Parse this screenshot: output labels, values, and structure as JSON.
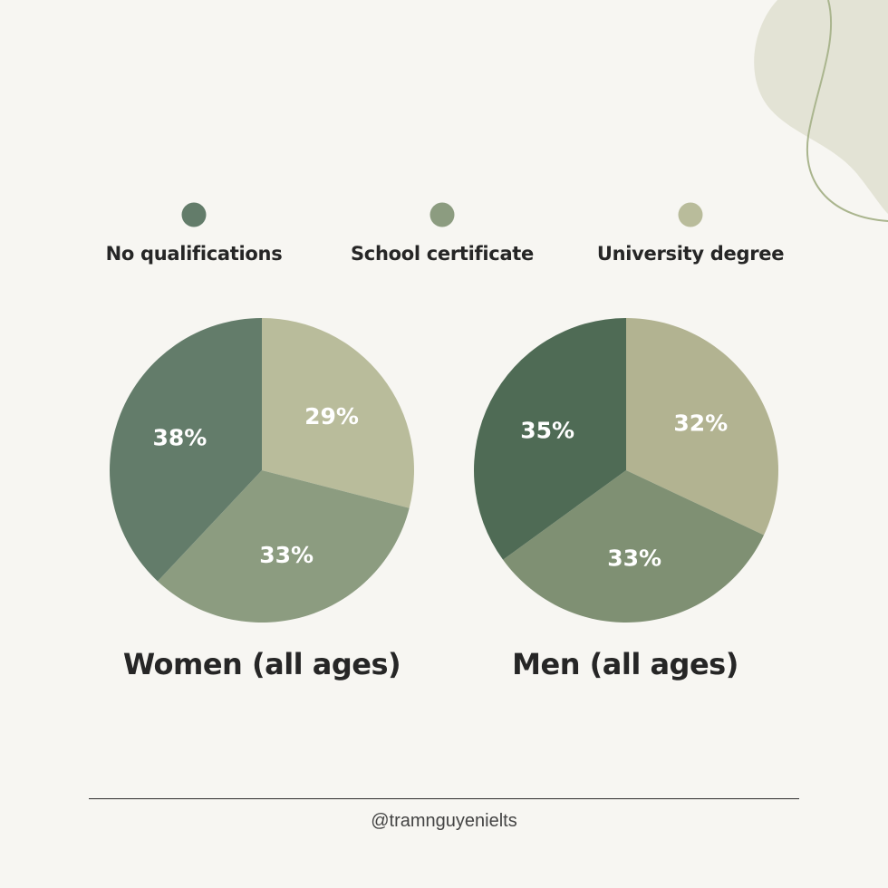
{
  "legend": [
    {
      "label": "No qualifications",
      "color": "#637c6a"
    },
    {
      "label": "School certificate",
      "color": "#8c9c80"
    },
    {
      "label": "University degree",
      "color": "#b9bc9b"
    }
  ],
  "chart_data": [
    {
      "type": "pie",
      "title": "Women (all ages)",
      "slices": [
        {
          "label": "University degree",
          "value": 29,
          "display": "29%",
          "color": "#b9bc9b"
        },
        {
          "label": "School certificate",
          "value": 33,
          "display": "33%",
          "color": "#8c9c80"
        },
        {
          "label": "No qualifications",
          "value": 38,
          "display": "38%",
          "color": "#637c6a"
        }
      ]
    },
    {
      "type": "pie",
      "title": "Men (all ages)",
      "slices": [
        {
          "label": "University degree",
          "value": 32,
          "display": "32%",
          "color": "#b2b391"
        },
        {
          "label": "School certificate",
          "value": 33,
          "display": "33%",
          "color": "#7f9073"
        },
        {
          "label": "No qualifications",
          "value": 35,
          "display": "35%",
          "color": "#4f6b55"
        }
      ]
    }
  ],
  "footer": {
    "handle": "@tramnguyenielts"
  },
  "colors": {
    "background": "#f7f6f2",
    "decor_blob": "#e3e3d5",
    "decor_line": "#aab58e",
    "text": "#262626"
  }
}
